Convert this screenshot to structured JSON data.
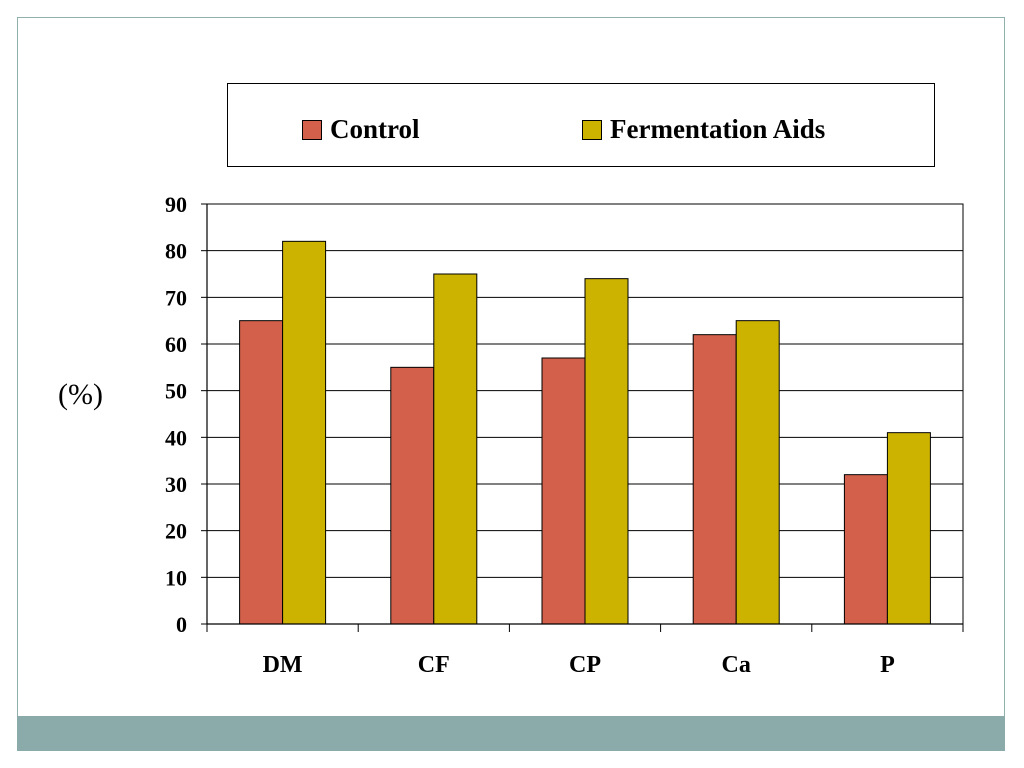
{
  "chart_data": {
    "type": "bar",
    "categories": [
      "DM",
      "CF",
      "CP",
      "Ca",
      "P"
    ],
    "series": [
      {
        "name": "Control",
        "values": [
          65,
          55,
          57,
          62,
          32
        ],
        "color": "#d2604a"
      },
      {
        "name": "Fermentation Aids",
        "values": [
          82,
          75,
          74,
          65,
          41
        ],
        "color": "#ccb300"
      }
    ],
    "ylabel": "(%)",
    "ylim": [
      0,
      90
    ],
    "yticks": [
      "0",
      "10",
      "20",
      "30",
      "40",
      "50",
      "60",
      "70",
      "80",
      "90"
    ],
    "grid": true,
    "legend_position": "top"
  },
  "theme": {
    "footer_color": "#8aabaa",
    "frame_color": "#8fb0ad"
  }
}
